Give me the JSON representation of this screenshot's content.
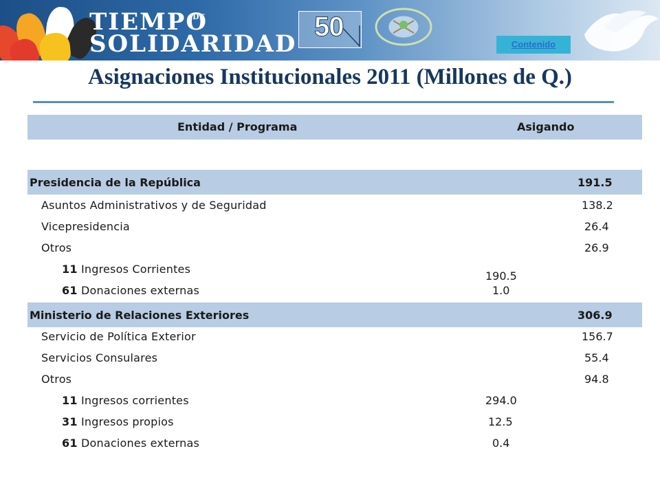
{
  "banner": {
    "logo_line1": "TIEMPO",
    "logo_de": "DE",
    "logo_line2": "SOLIDARIDAD",
    "badge_number": "50",
    "contents_link": "Contenido"
  },
  "title": "Asignaciones Institucionales 2011 (Millones de Q.)",
  "table": {
    "headers": {
      "entity": "Entidad / Programa",
      "assigned": "Asigando"
    },
    "sections": [
      {
        "name": "Presidencia de la República",
        "total": "191.5",
        "programs": [
          {
            "name": "Asuntos Administrativos y de Seguridad",
            "value": "138.2"
          },
          {
            "name": "Vicepresidencia",
            "value": "26.4"
          },
          {
            "name": "Otros",
            "value": "26.9"
          }
        ],
        "sources": [
          {
            "code": "11",
            "name": "Ingresos Corrientes",
            "value": "190.5"
          },
          {
            "code": "61",
            "name": "Donaciones externas",
            "value": "1.0"
          }
        ]
      },
      {
        "name": "Ministerio de Relaciones Exteriores",
        "total": "306.9",
        "programs": [
          {
            "name": "Servicio de Política Exterior",
            "value": "156.7"
          },
          {
            "name": "Servicios Consulares",
            "value": "55.4"
          },
          {
            "name": "Otros",
            "value": "94.8"
          }
        ],
        "sources": [
          {
            "code": "11",
            "name": "Ingresos corrientes",
            "value": "294.0"
          },
          {
            "code": "31",
            "name": "Ingresos propios",
            "value": "12.5"
          },
          {
            "code": "61",
            "name": "Donaciones externas",
            "value": "0.4"
          }
        ]
      }
    ]
  },
  "colors": {
    "header_fill": "#b8cce4",
    "title": "#17375e",
    "rule": "#4f8fcf",
    "link_bg": "#35b3d6"
  }
}
